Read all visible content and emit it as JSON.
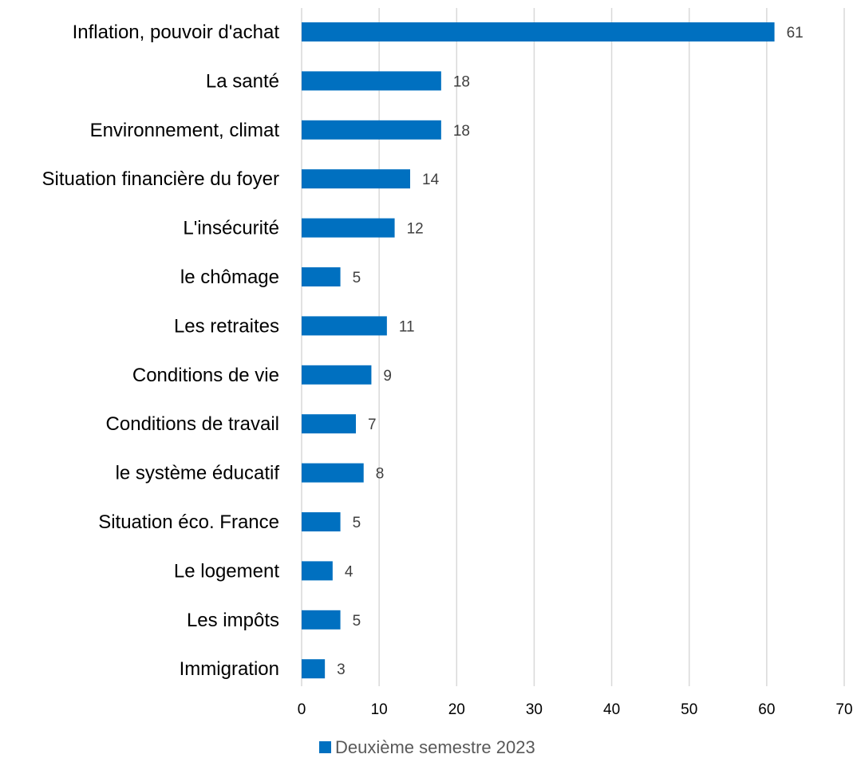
{
  "chart_data": {
    "type": "bar",
    "orientation": "horizontal",
    "categories": [
      "Inflation, pouvoir d'achat",
      "La santé",
      "Environnement, climat",
      "Situation financière du foyer",
      "L'insécurité",
      "le chômage",
      "Les retraites",
      "Conditions de vie",
      "Conditions de travail",
      "le système éducatif",
      "Situation éco. France",
      "Le logement",
      "Les impôts",
      "Immigration"
    ],
    "series": [
      {
        "name": "Deuxième semestre 2023",
        "color": "#0070c0",
        "values": [
          61,
          18,
          18,
          14,
          12,
          5,
          11,
          9,
          7,
          8,
          5,
          4,
          5,
          3
        ]
      }
    ],
    "xlim": [
      0,
      70
    ],
    "xticks": [
      0,
      10,
      20,
      30,
      40,
      50,
      60,
      70
    ],
    "grid": "vertical",
    "legend_position": "bottom"
  }
}
